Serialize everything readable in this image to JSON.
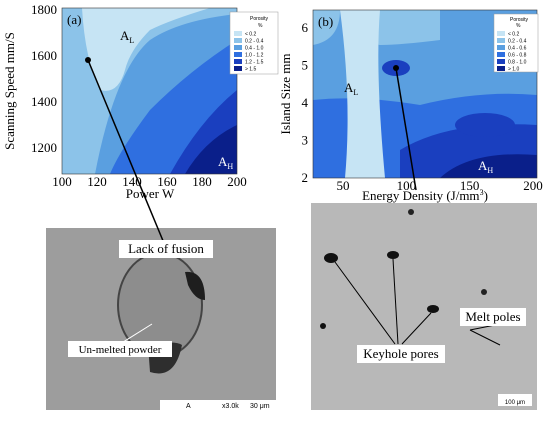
{
  "panel_a": {
    "label": "(a)",
    "x_label": "Power W",
    "y_label": "Scanning Speed mm/S",
    "x_ticks": [
      "100",
      "120",
      "140",
      "160",
      "180",
      "200"
    ],
    "y_ticks": [
      "1800",
      "1600",
      "1400",
      "1200"
    ],
    "legend": {
      "title": "Porosity",
      "unit": "%",
      "entries": [
        "< 0.2",
        "0.2 - 0.4",
        "0.4 - 1.0",
        "1.0 - 1.2",
        "1.2 - 1.5",
        "> 1.5"
      ]
    },
    "regions": [
      {
        "base": "A",
        "sub": "L"
      },
      {
        "base": "A",
        "sub": "H"
      }
    ]
  },
  "panel_b": {
    "label": "(b)",
    "x_label": "Energy Density (J/mm",
    "x_label_sup": "3",
    "x_label_end": ")",
    "y_label": "Island Size mm",
    "x_ticks": [
      "50",
      "100",
      "150",
      "200"
    ],
    "y_ticks": [
      "6",
      "5",
      "4",
      "3",
      "2"
    ],
    "legend": {
      "title": "Porosity",
      "unit": "%",
      "entries": [
        "< 0.2",
        "0.2 - 0.4",
        "0.4 - 0.6",
        "0.6 - 0.8",
        "0.8 - 1.0",
        "> 1.0"
      ]
    },
    "regions": [
      {
        "base": "A",
        "sub": "L"
      },
      {
        "base": "A",
        "sub": "H"
      }
    ]
  },
  "micrograph_left": {
    "title": "Lack of fusion",
    "note": "Un-melted powder",
    "scale_bar": [
      "A",
      "x3.0k",
      "30 μm"
    ]
  },
  "micrograph_right": {
    "pores": "Keyhole pores",
    "melt": "Melt poles",
    "scale_bar": "100 μm"
  }
}
